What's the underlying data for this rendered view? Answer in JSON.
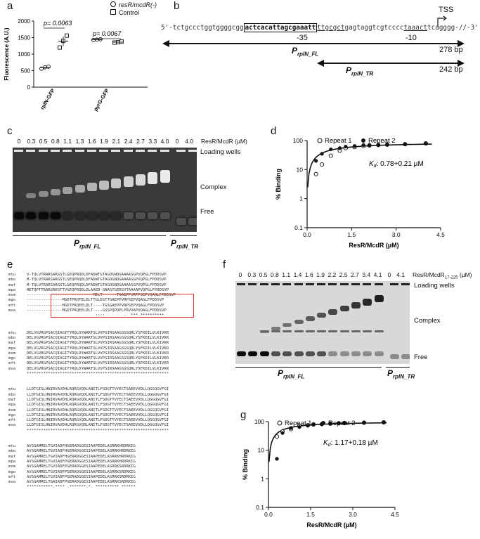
{
  "panels": {
    "a": "a",
    "b": "b",
    "c": "c",
    "d": "d",
    "e": "e",
    "f": "f",
    "g": "g"
  },
  "panel_a": {
    "legend": [
      {
        "symbol": "circle",
        "label": "resR/mcdR(-)"
      },
      {
        "symbol": "square",
        "label": "Control"
      }
    ],
    "chart_data": {
      "type": "scatter",
      "ylabel": "Fluorescence (A.U.)",
      "categories": [
        "rplN-GFP",
        "pyrG-GFP"
      ],
      "ylim": [
        0,
        2000
      ],
      "yticks": [
        "0",
        "500",
        "1000",
        "1500",
        "2000"
      ],
      "series": [
        {
          "name": "resR/mcdR(-)",
          "values": [
            [
              560,
              600,
              620
            ],
            [
              1430,
              1440,
              1450
            ]
          ]
        },
        {
          "name": "Control",
          "values": [
            [
              1200,
              1400,
              1560
            ],
            [
              1350,
              1360,
              1380
            ]
          ]
        }
      ],
      "annotations": [
        "p= 0.0063",
        "p= 0.0067"
      ]
    }
  },
  "panel_b": {
    "tss": "TSS",
    "seq_prefix": "5'-tctgccctggtggggcgg",
    "seq_box": "actcacattagcgaaatt",
    "seq_mid": "ttgcgct",
    "seq_mid2": "gagtaggtcgtcccc",
    "seq_minus10": "taaact",
    "seq_suffix": "tcagggg-//-3'",
    "minus35": "-35",
    "minus10": "-10",
    "fl_label": "P",
    "fl_sub": "rplN_FL",
    "fl_size": "278 bp",
    "tr_label": "P",
    "tr_sub": "rplN_TR",
    "tr_size": "242 bp"
  },
  "panel_c": {
    "conc_values": [
      "0",
      "0.3",
      "0.5",
      "0.8",
      "1.1",
      "1.3",
      "1.6",
      "1.9",
      "2.1",
      "2.4",
      "2.7",
      "3.3",
      "4.0",
      "0",
      "4.0"
    ],
    "unit": "ResR/McdR (µM)",
    "loading": "Loading wells",
    "complex": "Complex",
    "free": "Free",
    "fl_label": "P",
    "fl_sub": "rplN_FL",
    "tr_label": "P",
    "tr_sub": "rplN_TR"
  },
  "panel_d": {
    "legend": [
      "Repeat 1",
      "Repeat 2"
    ],
    "kd_prefix": "K",
    "kd_sub": "d",
    "kd_value": ": 0.78+0.21 µM",
    "chart_data": {
      "type": "scatter",
      "xlabel": "ResR/McdR (µM)",
      "ylabel": "% Binding",
      "xlim": [
        0,
        4.5
      ],
      "ylim_log": [
        0.1,
        100
      ],
      "xticks": [
        "0.0",
        "1.5",
        "3.0",
        "4.5"
      ],
      "yticks": [
        "0.1",
        "1",
        "10",
        "100"
      ],
      "series": [
        {
          "name": "Repeat 1",
          "x": [
            0.3,
            0.5,
            0.8,
            1.1,
            1.3,
            1.6,
            1.9,
            2.1,
            2.4,
            2.7,
            3.3,
            4.0
          ],
          "y": [
            7,
            15,
            30,
            45,
            55,
            60,
            65,
            68,
            70,
            72,
            75,
            80
          ]
        },
        {
          "name": "Repeat 2",
          "x": [
            0.3,
            0.5,
            0.8,
            1.1,
            1.3,
            1.6,
            1.9,
            2.1,
            2.4,
            2.7,
            3.3,
            4.0
          ],
          "y": [
            20,
            35,
            50,
            55,
            62,
            65,
            70,
            70,
            72,
            74,
            76,
            78
          ]
        }
      ]
    }
  },
  "panel_e": {
    "block1": [
      [
        "mtu",
        "V-TQLVTRARSARGSTLGEQPRQDLDFADWTGTAGDGNDGAAAASGPVQPGLFPDDSVP"
      ],
      [
        "mbo",
        "M-TQLVTRARSARGSTLGEQPRQDLDFADWTGTAGDGNDGAAAASGPVQPGLFPDDSVP"
      ],
      [
        "maf",
        "M-TQLVTRARSARGSTLGEQPRQDLDFADWTGTAGDGNDGAAAASGPVQPGLFPDDSVP"
      ],
      [
        "mpa",
        "METQPTTRARSRKGTTVGEQPRQDLDLAAED-GNAGTGERSVTAAAAPVQPGLFPDDSVP"
      ],
      [
        "msm",
        "----------------------------MDLT------TGAEPPVRPPSEPVQAGLFPDDSVP"
      ],
      [
        "mgo",
        "---------------MGDTPRQTELDLTTGLDSTTGAEPPVRPSEPVQAGLFPDDSVP"
      ],
      [
        "mft",
        "---------------MGDTPRQEELDLT----TGSGAEPPVRPSEPVQAGLFPDDSVP"
      ],
      [
        "mva",
        "---------------MGDTPRQEELDLT----GSSPQPDPLPRVVAPVQAGLFPDDSVP"
      ],
      [
        "",
        "                             ::::        .  ***.**********"
      ]
    ],
    "block2": [
      [
        "mtu",
        "DELVGVRGPSACQIAGITYRQLDYWARTSLVVPSIRSAAGSGSQRLYSFKDILVLKIVKR"
      ],
      [
        "mbo",
        "DELVGVRGPSACQIAGITYRQLDYWARTSLVVPSIRSAAGSGSQRLYSFKDILVLKIVKR"
      ],
      [
        "maf",
        "DELVGVRGPSACQIAGITYRQLDYWARTSLVVPSIRSAAGSGSQRLYSFKDILVLKIVKR"
      ],
      [
        "mpa",
        "DELVGVRGPSACQIAGITYRQLDYWARTSLVVPSIRSAAGSGSQRLYSFKDILVLKIVKR"
      ],
      [
        "msm",
        "DELVGVRGPSACQIAGITYRQLDYWARTSLVVPSIRSAAGSGSQRLYSFKDILVLKIVKR"
      ],
      [
        "mgo",
        "DELVGVRGPSACQIAGITYRQLDYWARTSLVVPSIRSAAGSGSQRLYSFKDILVLKIVKR"
      ],
      [
        "mft",
        "DELVGVRGPSACQIAGITYRQLDYWARTSLVVPSIRSAAGSGSQRLYSFKDILVLKIVKR"
      ],
      [
        "mva",
        "DELVGVRGPSACQIAGITYRQLDYWARTSLVVPSIRSAAGSGSQRLYSFKDILVLKIVKR"
      ],
      [
        "",
        "************************************************************"
      ]
    ],
    "block3": [
      [
        "mtu",
        "LLDTGISLHNIRVAVDHLRQRGVQDLANITLFSDGTTVYECTSAEEVVDLLQGGQGVFGI"
      ],
      [
        "mbo",
        "LLDTGISLHNIRVAVDHLRQRGVQDLANITLFSDGTTVYECTSAEEVVDLLQGGQGVFGI"
      ],
      [
        "maf",
        "LLDTGISLHNIRVAVDHLRQRGVQDLANITLFSDGTTVYECTSAEEVVDLLQGGQGVFGI"
      ],
      [
        "mpa",
        "LLDTGISLHNIRVAVDHLRQRGVQDLANITLFSDGTTVYECTSAEEVVDLLQGGQGVFGI"
      ],
      [
        "msm",
        "LLDTGISLHNIRVAVDHLRQRGVQDLANITLFSDGTTVYECTSAEEVVDLLQGGQGVFGI"
      ],
      [
        "mgo",
        "LLDTGISLHNIRVAVDHLRQRGVQDLANITLFSDGTTVYECTSAEEVVDLLQGGQGVFGI"
      ],
      [
        "mft",
        "LLDTGISLHNIRVAVDHLRQRGVQDLANITLFSDGTTVYECTSAEEVVDLLQGGQGVFGI"
      ],
      [
        "mva",
        "LLDTGISLHNIRVAVDHLRQRGVQDLANITLFSDGTTVYECTSAEEVVDLLQGGQGVFGI"
      ],
      [
        "",
        "************************************************************"
      ]
    ],
    "block4": [
      [
        "mtu",
        "AVSGAMRELTGVIADFHGERADGGESIAAPEDELASRRKHRDRKIG"
      ],
      [
        "mbo",
        "AVSGAMRELTGVIADFHGERADGGESIAAPEDELASRRKHRDRKIG"
      ],
      [
        "maf",
        "AVSGAMRELTGVIADFHGERADGGESIAAPEDELASRRKHRDRKIG"
      ],
      [
        "mpa",
        "AVSGAMRELTGVIADFPGERADGGESIAAPEDELASRRKHRDRKIG"
      ],
      [
        "msm",
        "AVSGAMRELTGVIADFPGERADGGESIAAPEDELASRRKSRDRKIG"
      ],
      [
        "mgo",
        "AVSGAMRELTGVIADFPGERADGGESIAAPEDELASRRKSRDRKIG"
      ],
      [
        "mft",
        "AVSGAMRELTGVIADFPGERADGGESIAAPEDELASRRKSRDRKIG"
      ],
      [
        "mva",
        "AVSGAMRELTGAIADFPGERADGGESIAAPEDELASRRKSRDRKIG"
      ],
      [
        "",
        "***********.**** .*******:*. ********** ******"
      ]
    ]
  },
  "panel_f": {
    "conc_values": [
      "0",
      "0.3",
      "0.5",
      "0.8",
      "1.1",
      "1.4",
      "1.6",
      "1.9",
      "2.2",
      "2.5",
      "2.7",
      "3.4",
      "4.1",
      "0",
      "4.1"
    ],
    "unit": "ResR/McdR",
    "unit_sub": "17-225",
    "unit_suffix": " (µM)",
    "loading": "Loading wells",
    "complex": "Complex",
    "free": "Free",
    "fl_label": "P",
    "fl_sub": "rplN_FL",
    "tr_label": "P",
    "tr_sub": "rplN_TR"
  },
  "panel_g": {
    "legend": [
      "Repeat 1",
      "Repeat 2"
    ],
    "kd_prefix": "K",
    "kd_sub": "d",
    "kd_value": ": 1.17+0.18 µM",
    "chart_data": {
      "type": "scatter",
      "xlabel": "ResR/McdR (µM)",
      "ylabel": "% Binding",
      "xlim": [
        0,
        4.5
      ],
      "ylim_log": [
        0.1,
        100
      ],
      "xticks": [
        "0.0",
        "1.5",
        "3.0",
        "4.5"
      ],
      "yticks": [
        "0.1",
        "1",
        "10",
        "100"
      ],
      "series": [
        {
          "name": "Repeat 1",
          "x": [
            0.3,
            0.5,
            0.8,
            1.1,
            1.4,
            1.6,
            1.9,
            2.2,
            2.5,
            2.7,
            3.4,
            4.1
          ],
          "y": [
            30,
            45,
            55,
            70,
            75,
            80,
            82,
            85,
            88,
            90,
            92,
            95
          ]
        },
        {
          "name": "Repeat 2",
          "x": [
            0.3,
            0.5,
            0.8,
            1.1,
            1.4,
            1.6,
            1.9,
            2.2,
            2.5,
            2.7,
            3.4,
            4.1
          ],
          "y": [
            5,
            40,
            60,
            65,
            72,
            78,
            80,
            84,
            86,
            88,
            90,
            93
          ]
        }
      ]
    }
  }
}
